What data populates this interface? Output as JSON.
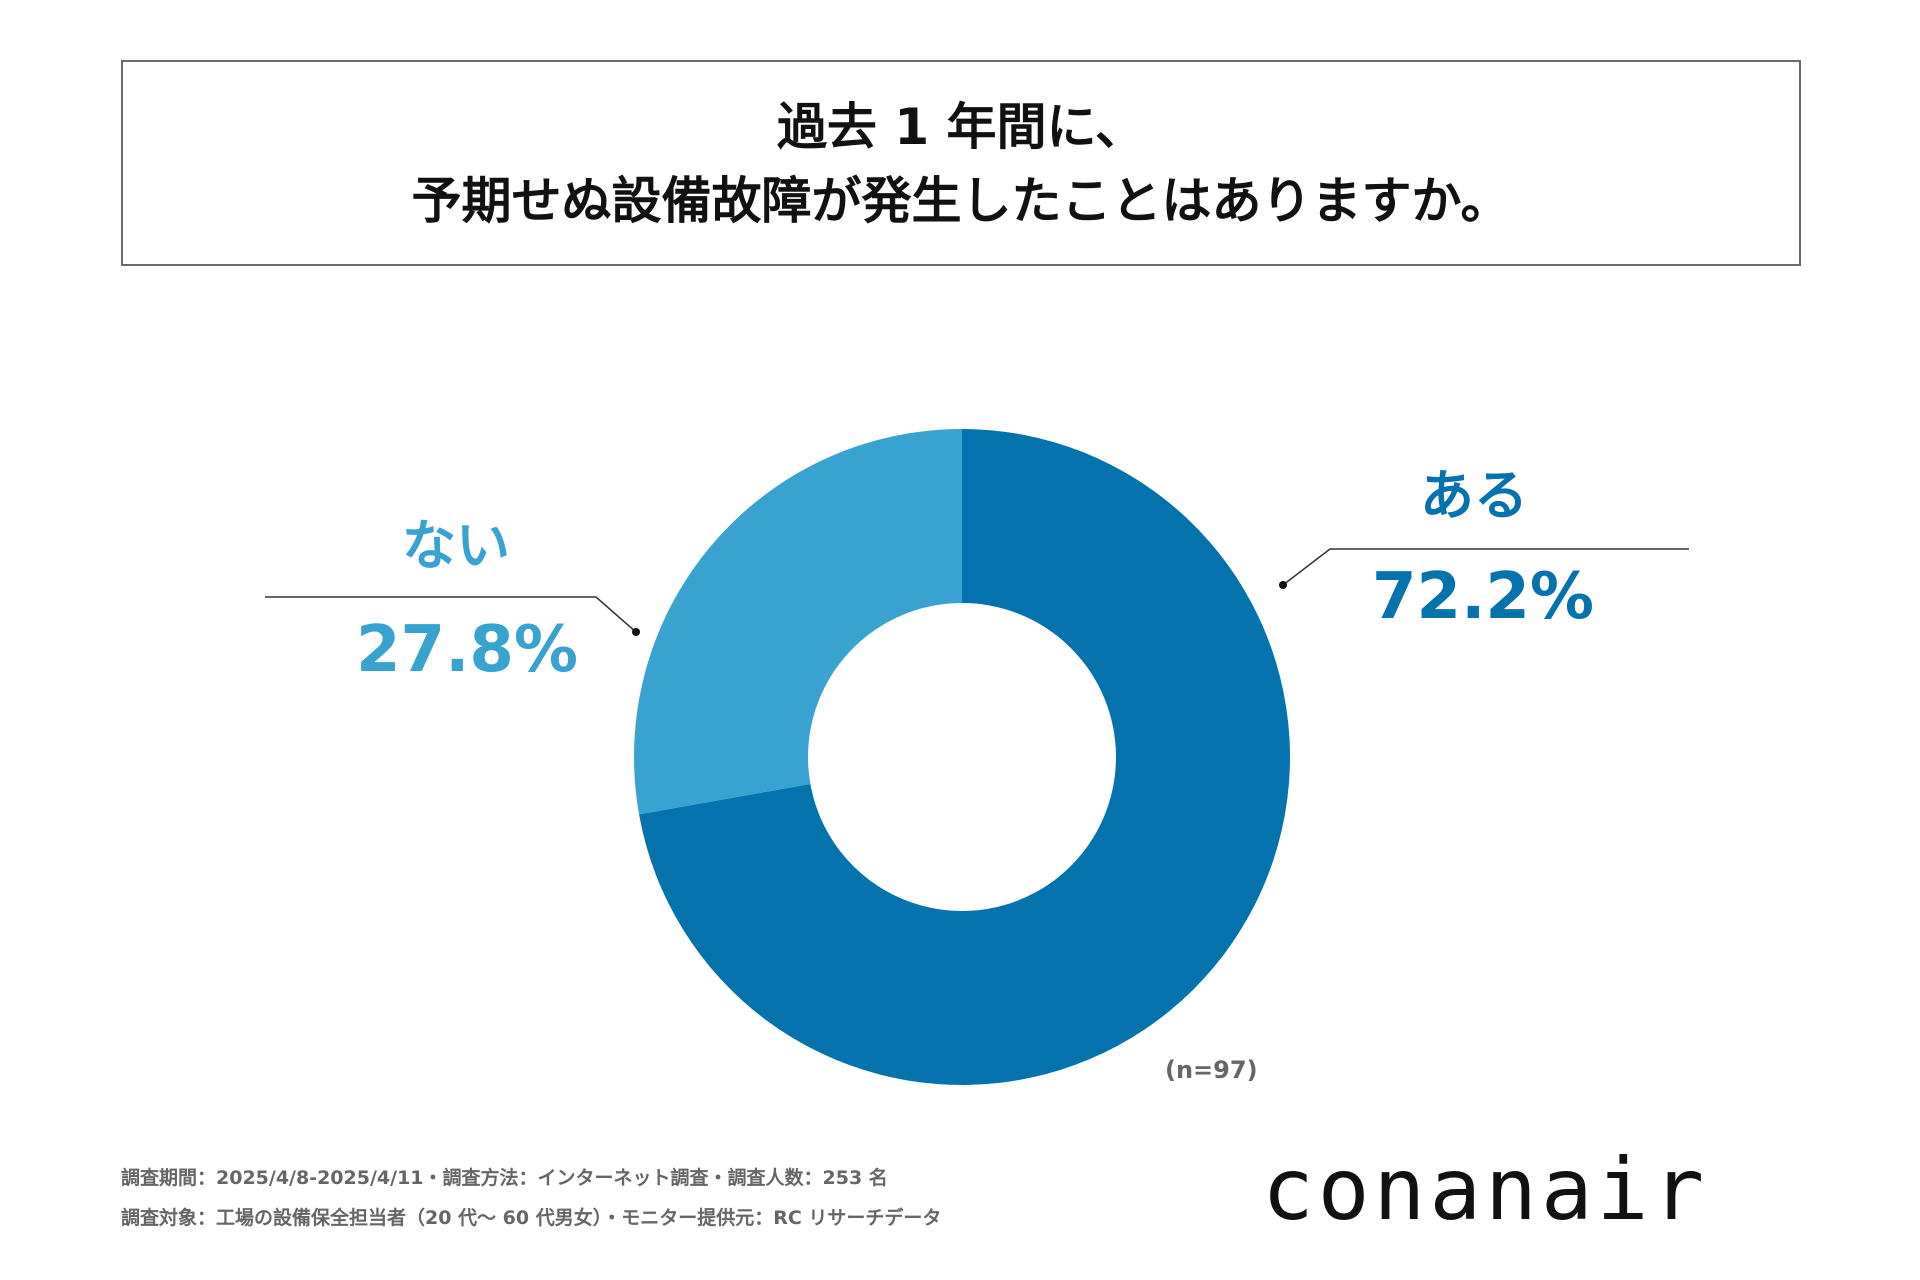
{
  "title": {
    "line1": "過去 1 年間に、",
    "line2": "予期せぬ設備故障が発生したことはありますか。"
  },
  "chart_data": {
    "type": "pie",
    "donut": true,
    "categories": [
      "ある",
      "ない"
    ],
    "values": [
      72.2,
      27.8
    ],
    "value_labels": [
      "72.2%",
      "27.8%"
    ],
    "colors": [
      "#0473ad",
      "#38a2d0"
    ],
    "sample_size": "(n=97)"
  },
  "footnotes": {
    "line1": "調査期間：2025/4/8-2025/4/11・調査方法：インターネット調査・調査人数：253 名",
    "line2": "調査対象：工場の設備保全担当者（20 代～ 60 代男女）・モニター提供元：RC リサーチデータ"
  },
  "brand": {
    "logo_text": "conanair"
  }
}
